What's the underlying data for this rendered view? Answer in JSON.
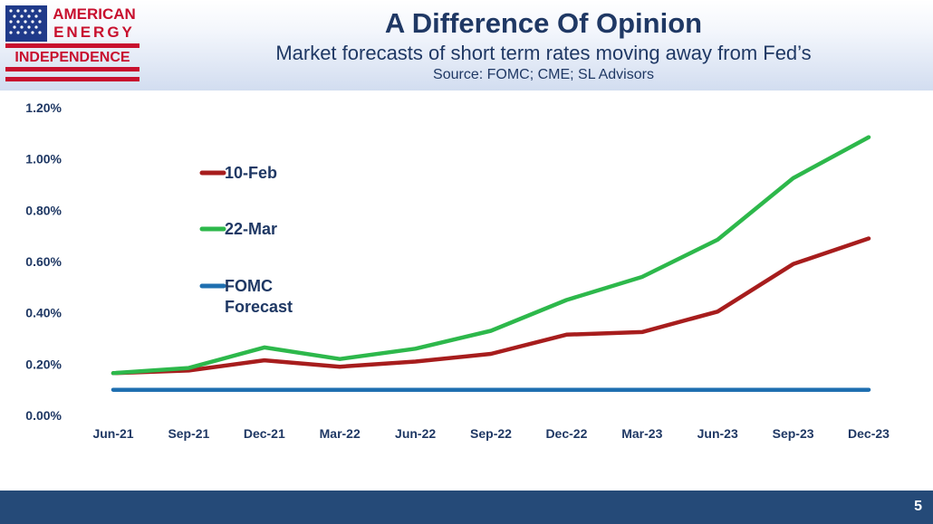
{
  "logo": {
    "line1": "AMERICAN",
    "line2": "ENERGY",
    "line3": "INDEPENDENCE",
    "flag_blue": "#1f3a8a",
    "stripe_red": "#c8102e"
  },
  "header": {
    "title": "A Difference Of Opinion",
    "subtitle": "Market forecasts of short term rates moving away from Fed’s",
    "source": "Source: FOMC; CME; SL Advisors"
  },
  "footer": {
    "page_number": "5"
  },
  "chart_data": {
    "type": "line",
    "categories": [
      "Jun-21",
      "Sep-21",
      "Dec-21",
      "Mar-22",
      "Jun-22",
      "Sep-22",
      "Dec-22",
      "Mar-23",
      "Jun-23",
      "Sep-23",
      "Dec-23"
    ],
    "ylim": [
      0,
      1.2
    ],
    "yticks": [
      "0.00%",
      "0.20%",
      "0.40%",
      "0.60%",
      "0.80%",
      "1.00%",
      "1.20%"
    ],
    "grid": false,
    "legend_position": "left, inside plot area",
    "series": [
      {
        "name": "10-Feb",
        "color": "#a71d1d",
        "values": [
          0.165,
          0.175,
          0.215,
          0.19,
          0.21,
          0.24,
          0.315,
          0.325,
          0.405,
          0.59,
          0.69
        ]
      },
      {
        "name": "22-Mar",
        "color": "#2db84b",
        "values": [
          0.165,
          0.185,
          0.265,
          0.22,
          0.26,
          0.33,
          0.45,
          0.54,
          0.685,
          0.925,
          1.085
        ]
      },
      {
        "name": "FOMC Forecast",
        "color": "#1f6fb0",
        "values": [
          0.1,
          0.1,
          0.1,
          0.1,
          0.1,
          0.1,
          0.1,
          0.1,
          0.1,
          0.1,
          0.1
        ]
      }
    ]
  }
}
